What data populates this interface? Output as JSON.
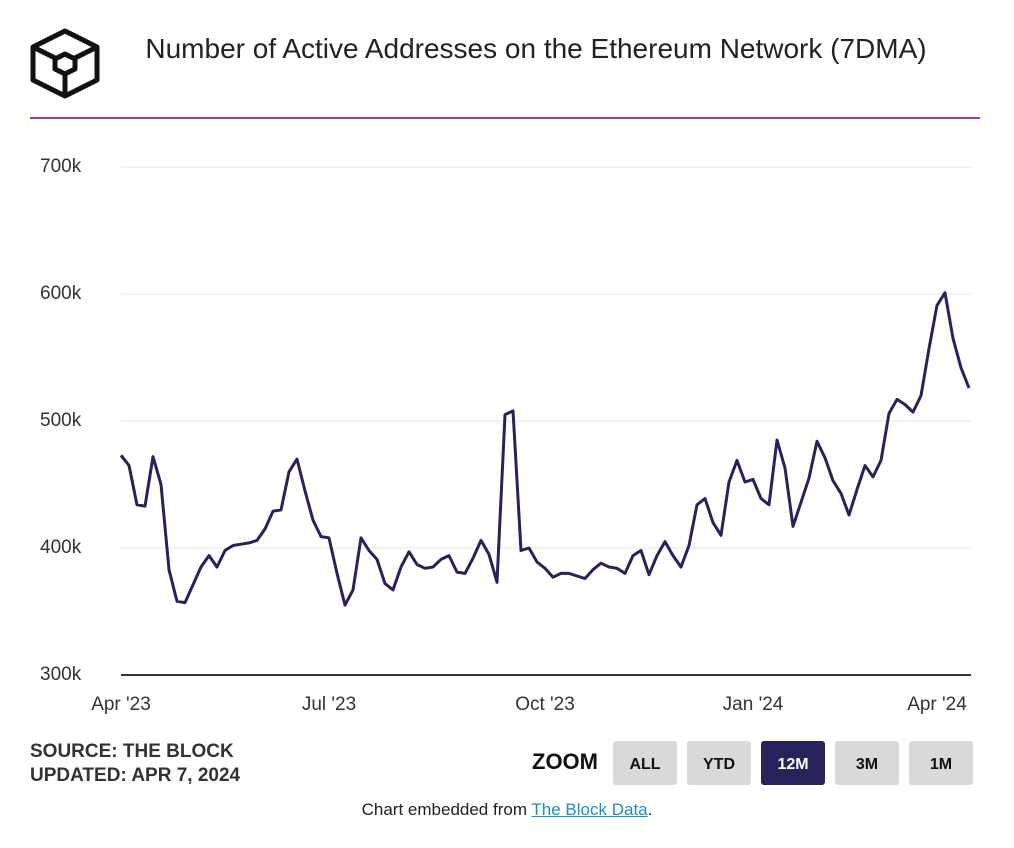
{
  "title": "Number of Active Addresses on the Ethereum Network (7DMA)",
  "chart_data": {
    "type": "line",
    "categories": [
      "Apr '23",
      null,
      null,
      null,
      null,
      null,
      null,
      null,
      null,
      null,
      null,
      null,
      null,
      null,
      null,
      null,
      null,
      null,
      null,
      null,
      null,
      null,
      null,
      null,
      null,
      null,
      "Jul '23",
      null,
      null,
      null,
      null,
      null,
      null,
      null,
      null,
      null,
      null,
      null,
      null,
      null,
      null,
      null,
      null,
      null,
      null,
      null,
      null,
      null,
      null,
      null,
      null,
      null,
      null,
      "Oct '23",
      null,
      null,
      null,
      null,
      null,
      null,
      null,
      null,
      null,
      null,
      null,
      null,
      null,
      null,
      null,
      null,
      null,
      null,
      null,
      null,
      null,
      null,
      null,
      null,
      null,
      "Jan '24",
      null,
      null,
      null,
      null,
      null,
      null,
      null,
      null,
      null,
      null,
      null,
      null,
      null,
      null,
      null,
      null,
      null,
      null,
      null,
      null,
      null,
      null,
      "Apr '24",
      null,
      null,
      null,
      null
    ],
    "series": [
      {
        "name": "Active Addresses",
        "color": "#27235a",
        "values": [
          473000,
          465000,
          434000,
          433000,
          472000,
          450000,
          383000,
          358000,
          357000,
          371000,
          385000,
          394000,
          385000,
          398000,
          402000,
          403000,
          404000,
          406000,
          415000,
          429000,
          430000,
          460000,
          470000,
          445000,
          422000,
          409000,
          408000,
          380000,
          355000,
          367000,
          408000,
          398000,
          391000,
          372000,
          367000,
          385000,
          397000,
          387000,
          384000,
          385000,
          391000,
          394000,
          381000,
          380000,
          392000,
          406000,
          395000,
          373000,
          505000,
          508000,
          398000,
          400000,
          389000,
          384000,
          377000,
          380000,
          380000,
          378000,
          376000,
          383000,
          388000,
          385000,
          384000,
          380000,
          394000,
          398000,
          379000,
          394000,
          405000,
          394000,
          385000,
          402000,
          434000,
          439000,
          420000,
          410000,
          452000,
          469000,
          452000,
          454000,
          439000,
          434000,
          485000,
          463000,
          417000,
          436000,
          455000,
          484000,
          471000,
          453000,
          443000,
          426000,
          446000,
          465000,
          456000,
          469000,
          506000,
          517000,
          513000,
          507000,
          520000,
          557000,
          591000,
          601000,
          565000,
          542000,
          526000
        ]
      }
    ],
    "ylim": [
      300000,
      700000
    ],
    "yticks": [
      {
        "value": 300000,
        "label": "300k"
      },
      {
        "value": 400000,
        "label": "400k"
      },
      {
        "value": 500000,
        "label": "500k"
      },
      {
        "value": 600000,
        "label": "600k"
      },
      {
        "value": 700000,
        "label": "700k"
      }
    ],
    "grid": true
  },
  "source": "SOURCE: THE BLOCK",
  "updated": "UPDATED: APR 7, 2024",
  "zoom": {
    "label": "ZOOM",
    "buttons": [
      "ALL",
      "YTD",
      "12M",
      "3M",
      "1M"
    ],
    "selected": 2
  },
  "footer": [
    "Chart embedded from ",
    "The Block Data",
    "."
  ]
}
